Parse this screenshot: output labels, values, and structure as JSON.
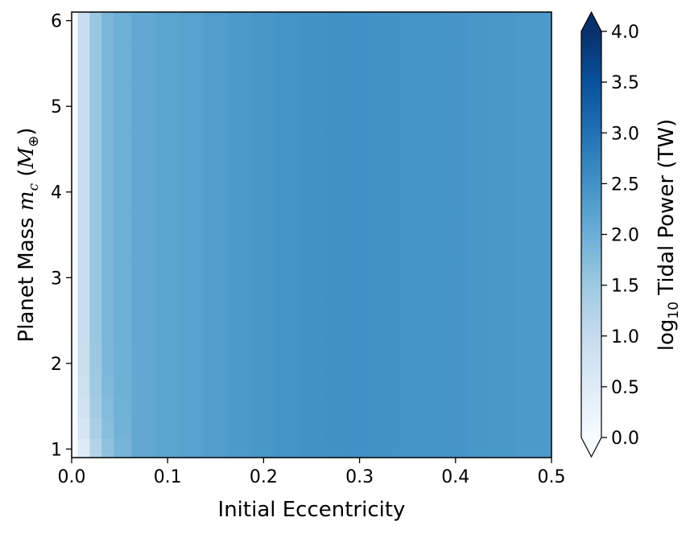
{
  "chart_data": {
    "type": "heatmap",
    "title": "",
    "xlabel": "Initial Eccentricity",
    "ylabel": "Planet Mass m_c (M⊕)",
    "ylabel_parts": {
      "main": "Planet Mass ",
      "var": "m",
      "var_sub": "c",
      "open": " (",
      "unit": "M",
      "unit_sub": "⊕",
      "close": ")"
    },
    "xlim": [
      0.0,
      0.5
    ],
    "ylim": [
      0.9,
      6.1
    ],
    "x_ticks": [
      0.0,
      0.1,
      0.2,
      0.3,
      0.4,
      0.5
    ],
    "x_tick_labels": [
      "0.0",
      "0.1",
      "0.2",
      "0.3",
      "0.4",
      "0.5"
    ],
    "y_ticks": [
      1,
      2,
      3,
      4,
      5,
      6
    ],
    "y_tick_labels": [
      "1",
      "2",
      "3",
      "4",
      "5",
      "6"
    ],
    "colorbar": {
      "label": "log10 Tidal Power (TW)",
      "label_parts": {
        "pre": "log",
        "sub": "10",
        "post": " Tidal Power (TW)"
      },
      "vmin": 0.0,
      "vmax": 4.0,
      "ticks": [
        0.0,
        0.5,
        1.0,
        1.5,
        2.0,
        2.5,
        3.0,
        3.5,
        4.0
      ],
      "tick_labels": [
        "0.0",
        "0.5",
        "1.0",
        "1.5",
        "2.0",
        "2.5",
        "3.0",
        "3.5",
        "4.0"
      ],
      "extend": "both",
      "colormap": "Blues",
      "colormap_stops": [
        "#f7fbff",
        "#deebf7",
        "#c6dbef",
        "#9ecae1",
        "#6baed6",
        "#4292c6",
        "#2171b5",
        "#08519c",
        "#08306b"
      ]
    },
    "grid": {
      "x": [
        0.0,
        0.0125,
        0.025,
        0.0375,
        0.05,
        0.075,
        0.1,
        0.125,
        0.15,
        0.175,
        0.2,
        0.225,
        0.25,
        0.275,
        0.3,
        0.325,
        0.35,
        0.375,
        0.4,
        0.425,
        0.45,
        0.475,
        0.5
      ],
      "y": [
        1.0,
        1.25,
        1.5,
        1.75,
        2.0,
        2.5,
        3.0,
        3.5,
        4.0,
        4.5,
        5.0,
        5.5,
        6.0
      ],
      "x_profile": [
        0.0,
        0.95,
        1.55,
        1.85,
        1.98,
        2.1,
        2.18,
        2.24,
        2.3,
        2.36,
        2.42,
        2.47,
        2.5,
        2.52,
        2.51,
        2.5,
        2.48,
        2.46,
        2.44,
        2.42,
        2.4,
        2.38,
        2.36
      ],
      "low_mass_adjust": [
        -0.55,
        -0.35,
        -0.2,
        -0.1,
        -0.05,
        0.0,
        0.0,
        0.0,
        0.0,
        0.0,
        0.0,
        0.0,
        0.0
      ]
    }
  }
}
